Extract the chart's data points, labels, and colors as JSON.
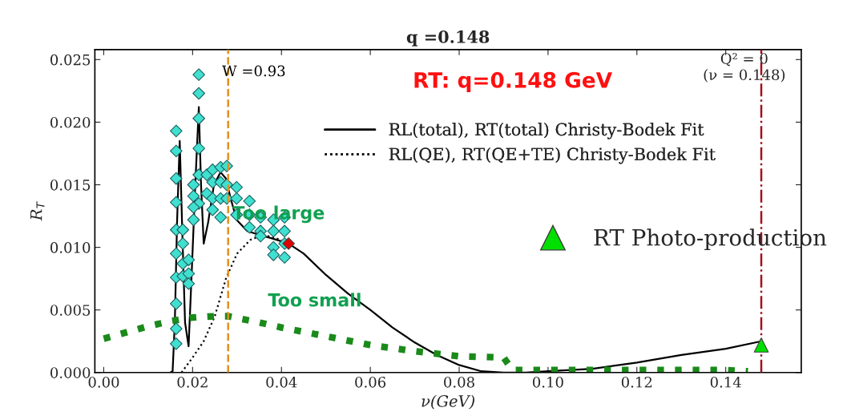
{
  "chart_data": {
    "type": "line",
    "title": "q =0.148",
    "xlabel": "ν(GeV)",
    "ylabel": "R$_{T}$",
    "xlim": [
      -0.002,
      0.157
    ],
    "ylim": [
      0,
      0.0258
    ],
    "xticks": [
      {
        "value": 0,
        "label": "0.00"
      },
      {
        "value": 0.02,
        "label": "0.02"
      },
      {
        "value": 0.04,
        "label": "0.04"
      },
      {
        "value": 0.06,
        "label": "0.06"
      },
      {
        "value": 0.08,
        "label": "0.08"
      },
      {
        "value": 0.1,
        "label": "0.10"
      },
      {
        "value": 0.12,
        "label": "0.12"
      },
      {
        "value": 0.14,
        "label": "0.14"
      }
    ],
    "yticks": [
      {
        "value": 0,
        "label": "0.000"
      },
      {
        "value": 0.005,
        "label": "0.005"
      },
      {
        "value": 0.01,
        "label": "0.010"
      },
      {
        "value": 0.015,
        "label": "0.015"
      },
      {
        "value": 0.02,
        "label": "0.020"
      },
      {
        "value": 0.025,
        "label": "0.025"
      }
    ],
    "grid": false,
    "legend": "top right",
    "series": [
      {
        "name": "RL(total), RT(total) Christy-Bodek Fit",
        "color": "#000000",
        "line_style": "solid",
        "x": [
          0.015,
          0.0155,
          0.016,
          0.0165,
          0.0171,
          0.0177,
          0.0183,
          0.0191,
          0.0198,
          0.0206,
          0.0214,
          0.0219,
          0.0225,
          0.0235,
          0.0248,
          0.0263,
          0.0275,
          0.0285,
          0.0299,
          0.0323,
          0.035,
          0.038,
          0.0416,
          0.045,
          0.05,
          0.055,
          0.06,
          0.065,
          0.07,
          0.075,
          0.08,
          0.085,
          0.09,
          0.095,
          0.1,
          0.11,
          0.12,
          0.13,
          0.14,
          0.148
        ],
        "values": [
          0,
          0.0001,
          0.004,
          0.012,
          0.0185,
          0.011,
          0.004,
          0.0021,
          0.008,
          0.015,
          0.0212,
          0.015,
          0.0103,
          0.012,
          0.015,
          0.016,
          0.0155,
          0.014,
          0.0122,
          0.0113,
          0.011,
          0.0107,
          0.0103,
          0.0095,
          0.0078,
          0.0063,
          0.005,
          0.0036,
          0.0024,
          0.0014,
          0.0006,
          0.0001,
          0.0,
          0.0,
          0.0001,
          0.0003,
          0.0008,
          0.0014,
          0.0019,
          0.0025
        ]
      },
      {
        "name": "RL(QE), RT(QE+TE) Christy-Bodek Fit",
        "color": "#000000",
        "line_style": "dotted",
        "x": [
          0.0175,
          0.02,
          0.0225,
          0.025,
          0.0275,
          0.03,
          0.033,
          0.036,
          0.04
        ],
        "values": [
          0,
          0.0012,
          0.0025,
          0.0045,
          0.0075,
          0.0095,
          0.0106,
          0.011,
          0.0106
        ]
      },
      {
        "color": "#1a8a1a",
        "line_style": "dotted",
        "x": [
          0,
          0.005,
          0.01,
          0.015,
          0.02,
          0.025,
          0.028,
          0.035,
          0.04,
          0.05,
          0.06,
          0.07,
          0.08,
          0.09,
          0.092,
          0.1,
          0.11,
          0.12,
          0.13,
          0.14,
          0.145
        ],
        "values": [
          0.0027,
          0.0032,
          0.0037,
          0.0041,
          0.0044,
          0.0045,
          0.0045,
          0.004,
          0.0036,
          0.0029,
          0.0022,
          0.0017,
          0.0013,
          0.0012,
          0.0002,
          0.0002,
          0.0002,
          0.0002,
          0.0002,
          0.0002,
          0.0001
        ]
      },
      {
        "type": "scatter",
        "marker": "diamond",
        "color": "#40e0d0",
        "x": [
          0.0163,
          0.0163,
          0.0163,
          0.0163,
          0.0163,
          0.0163,
          0.0163,
          0.0163,
          0.0163,
          0.0163,
          0.0178,
          0.0178,
          0.0178,
          0.0178,
          0.0191,
          0.0191,
          0.0191,
          0.0214,
          0.0214,
          0.0214,
          0.0214,
          0.0214,
          0.0214,
          0.0202,
          0.0202,
          0.0202,
          0.0202,
          0.0232,
          0.0232,
          0.0245,
          0.0245,
          0.0245,
          0.0245,
          0.0263,
          0.0263,
          0.0263,
          0.0263,
          0.0277,
          0.0277,
          0.0277,
          0.0299,
          0.0299,
          0.0299,
          0.0328,
          0.0328,
          0.0328,
          0.0353,
          0.0353,
          0.0353,
          0.0382,
          0.0382,
          0.0382,
          0.0382,
          0.0407,
          0.0407,
          0.0407,
          0.0407
        ],
        "values": [
          0.0023,
          0.0035,
          0.0055,
          0.0076,
          0.0095,
          0.0114,
          0.0136,
          0.0155,
          0.0177,
          0.0193,
          0.0114,
          0.0103,
          0.0087,
          0.0077,
          0.009,
          0.0079,
          0.0071,
          0.0238,
          0.0223,
          0.0203,
          0.0179,
          0.0158,
          0.0135,
          0.015,
          0.0141,
          0.0132,
          0.0122,
          0.0158,
          0.0143,
          0.0162,
          0.0152,
          0.0139,
          0.013,
          0.0164,
          0.0152,
          0.0139,
          0.0124,
          0.0165,
          0.015,
          0.0139,
          0.0148,
          0.0139,
          0.0126,
          0.0137,
          0.0126,
          0.0116,
          0.0124,
          0.0113,
          0.0109,
          0.0122,
          0.0113,
          0.01,
          0.0094,
          0.0124,
          0.0113,
          0.0103,
          0.0092
        ]
      },
      {
        "type": "scatter",
        "marker": "diamond",
        "color": "#e00000",
        "x": [
          0.0416
        ],
        "values": [
          0.0103
        ]
      },
      {
        "name": "RT Photo-production",
        "type": "scatter",
        "marker": "triangle",
        "color": "#00e000",
        "x": [
          0.148
        ],
        "values": [
          0.0022
        ]
      }
    ],
    "ref_lines": [
      {
        "axis": "x",
        "value": 0.028,
        "color": "#e09020",
        "line_style": "dashed"
      },
      {
        "axis": "x",
        "value": 0.148,
        "label": "Q² = 0\n(ν = 0.148)",
        "color": "#a01020",
        "line_style": "dashdot"
      }
    ],
    "annotations": [
      "W =0.93",
      "RT: q=0.148 GeV",
      "Too large",
      "Too small"
    ]
  }
}
